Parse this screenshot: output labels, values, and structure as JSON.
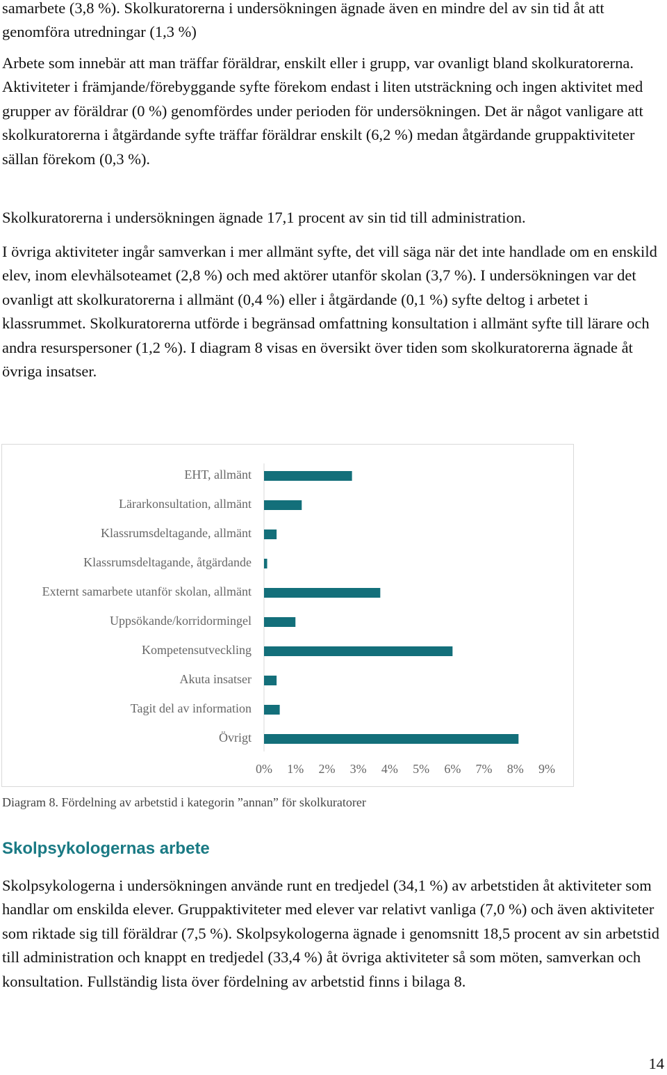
{
  "paragraphs_before": [
    "samarbete (3,8 %). Skolkuratorerna i undersökningen ägnade även en mindre del av sin tid åt att genomföra utredningar (1,3 %)",
    "Arbete som innebär att man träffar föräldrar, enskilt eller i grupp, var ovanligt bland skolkuratorerna. Aktiviteter i främjande/förebyggande syfte förekom endast i liten utsträckning och ingen aktivitet med grupper av föräldrar (0 %) genomfördes under perioden för undersökningen. Det är något vanligare att skolkuratorerna i åtgärdande syfte träffar föräldrar enskilt (6,2 %) medan åtgärdande gruppaktiviteter sällan förekom (0,3 %).",
    "Skolkuratorerna i undersökningen ägnade 17,1 procent av sin tid till administration.",
    "I övriga aktiviteter ingår samverkan i mer allmänt syfte, det vill säga när det inte handlade om en enskild elev, inom elevhälsoteamet (2,8 %) och med aktörer utanför skolan (3,7 %). I undersökningen var det ovanligt att skolkuratorerna i allmänt (0,4 %) eller i åtgärdande (0,1 %) syfte deltog i arbetet i klassrummet. Skolkuratorerna utförde i begränsad omfattning konsultation i allmänt syfte till lärare och andra resurspersoner (1,2 %). I diagram 8 visas en översikt över tiden som skolkuratorerna ägnade åt övriga insatser."
  ],
  "chart_data": {
    "type": "hbar",
    "categories": [
      "EHT, allmänt",
      "Lärarkonsultation, allmänt",
      "Klassrumsdeltagande, allmänt",
      "Klassrumsdeltagande, åtgärdande",
      "Externt samarbete utanför skolan, allmänt",
      "Uppsökande/korridormingel",
      "Kompetensutveckling",
      "Akuta insatser",
      "Tagit del av information",
      "Övrigt"
    ],
    "values": [
      2.8,
      1.2,
      0.4,
      0.1,
      3.7,
      1.0,
      6.0,
      0.4,
      0.5,
      8.1
    ],
    "color": "#136f7a",
    "xlim": [
      0,
      9
    ],
    "xticks": [
      {
        "value": 0,
        "label": "0%"
      },
      {
        "value": 1,
        "label": "1%"
      },
      {
        "value": 2,
        "label": "2%"
      },
      {
        "value": 3,
        "label": "3%"
      },
      {
        "value": 4,
        "label": "4%"
      },
      {
        "value": 5,
        "label": "5%"
      },
      {
        "value": 6,
        "label": "6%"
      },
      {
        "value": 7,
        "label": "7%"
      },
      {
        "value": 8,
        "label": "8%"
      },
      {
        "value": 9,
        "label": "9%"
      }
    ]
  },
  "caption": "Diagram 8. Fördelning av arbetstid i kategorin ”annan” för skolkuratorer",
  "heading": "Skolpsykologernas arbete",
  "paragraph_after": "Skolpsykologerna i undersökningen använde runt en tredjedel (34,1 %) av arbetstiden åt aktiviteter som handlar om enskilda elever. Gruppaktiviteter med elever var relativt vanliga (7,0 %) och även aktiviteter som riktade sig till föräldrar (7,5 %). Skolpsykologerna ägnade i genomsnitt 18,5 procent av sin arbetstid till administration och knappt en tredjedel (33,4 %) åt övriga aktiviteter så som möten, samverkan och konsultation. Fullständig lista över fördelning av arbetstid finns i bilaga 8.",
  "page_number": "14"
}
